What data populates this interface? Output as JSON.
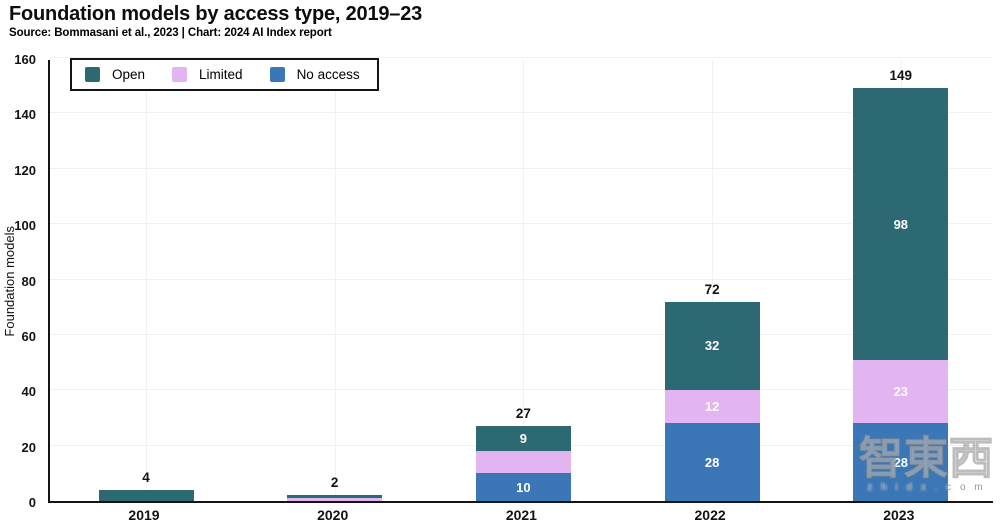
{
  "header": {
    "title": "Foundation models by access type, 2019–23",
    "source": "Source: Bommasani et al., 2023 | Chart: 2024 AI Index report"
  },
  "legend": {
    "items": [
      {
        "label": "Open",
        "color": "#2d6973"
      },
      {
        "label": "Limited",
        "color": "#e3b4f2"
      },
      {
        "label": "No access",
        "color": "#3b77b7"
      }
    ]
  },
  "watermark": {
    "text": "智東西",
    "url": "z h i d x . c o m"
  },
  "chart_data": {
    "type": "bar",
    "stacked": true,
    "title": "Foundation models by access type, 2019–23",
    "categories": [
      "2019",
      "2020",
      "2021",
      "2022",
      "2023"
    ],
    "series": [
      {
        "name": "Open",
        "color": "#2d6973",
        "values": [
          4,
          1,
          9,
          32,
          98
        ],
        "segment_labels": [
          null,
          null,
          "9",
          "32",
          "98"
        ]
      },
      {
        "name": "Limited",
        "color": "#e3b4f2",
        "values": [
          0,
          1,
          8,
          12,
          23
        ],
        "segment_labels": [
          null,
          null,
          null,
          "12",
          "23"
        ]
      },
      {
        "name": "No access",
        "color": "#3b77b7",
        "values": [
          0,
          0,
          10,
          28,
          28
        ],
        "segment_labels": [
          null,
          null,
          "10",
          "28",
          "28"
        ]
      }
    ],
    "totals": [
      "4",
      "2",
      "27",
      "72",
      "149"
    ],
    "xlabel": "",
    "ylabel": "Foundation models",
    "ylim": [
      0,
      160
    ],
    "yticks": [
      0,
      20,
      40,
      60,
      80,
      100,
      120,
      140,
      160
    ],
    "grid": true,
    "legend_position": "top-left"
  }
}
